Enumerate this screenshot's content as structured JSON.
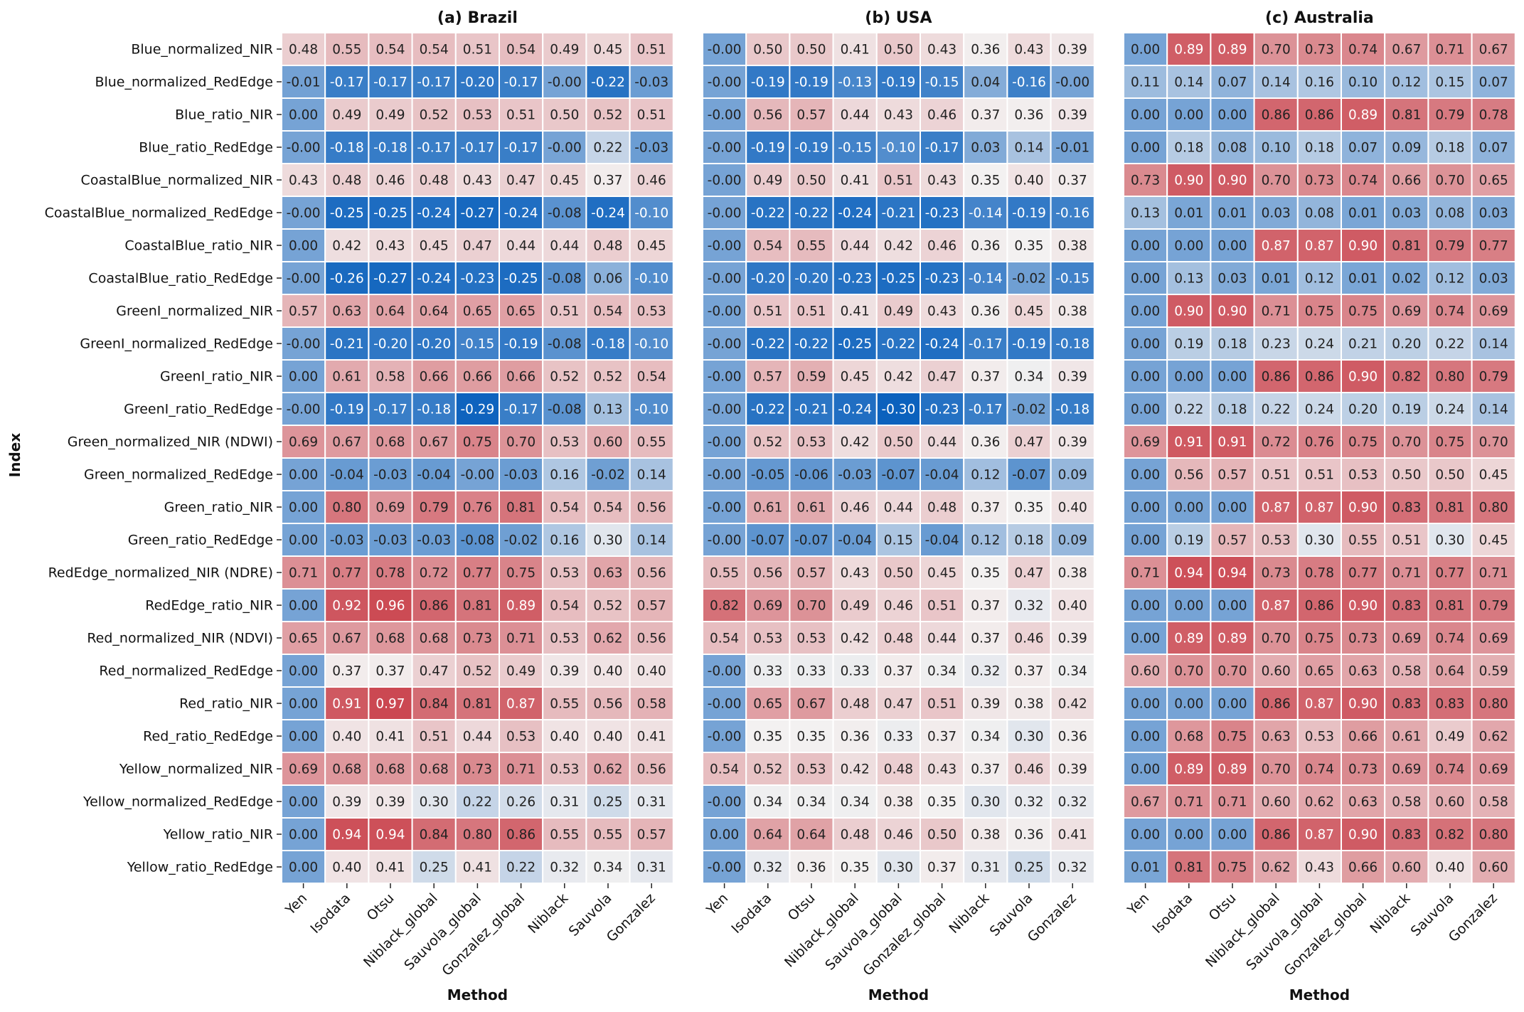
{
  "chart_data": {
    "type": "heatmap",
    "ylabel": "Index",
    "xlabel": "Method",
    "value_range": [
      -0.3,
      1.0
    ],
    "colormap": "coolwarm-like (blue = low, white = mid, red = high)",
    "colors": {
      "low": "#0b61bd",
      "mid": "#f3f1f1",
      "high": "#c9404a",
      "grid": "#ffffff",
      "text_dark": "#222222",
      "text_light": "#ffffff"
    },
    "rows": [
      "Blue_normalized_NIR",
      "Blue_normalized_RedEdge",
      "Blue_ratio_NIR",
      "Blue_ratio_RedEdge",
      "CoastalBlue_normalized_NIR",
      "CoastalBlue_normalized_RedEdge",
      "CoastalBlue_ratio_NIR",
      "CoastalBlue_ratio_RedEdge",
      "GreenI_normalized_NIR",
      "GreenI_normalized_RedEdge",
      "GreenI_ratio_NIR",
      "GreenI_ratio_RedEdge",
      "Green_normalized_NIR (NDWI)",
      "Green_normalized_RedEdge",
      "Green_ratio_NIR",
      "Green_ratio_RedEdge",
      "RedEdge_normalized_NIR (NDRE)",
      "RedEdge_ratio_NIR",
      "Red_normalized_NIR (NDVI)",
      "Red_normalized_RedEdge",
      "Red_ratio_NIR",
      "Red_ratio_RedEdge",
      "Yellow_normalized_NIR",
      "Yellow_normalized_RedEdge",
      "Yellow_ratio_NIR",
      "Yellow_ratio_RedEdge"
    ],
    "columns": [
      "Yen",
      "Isodata",
      "Otsu",
      "Niblack_global",
      "Sauvola_global",
      "Gonzalez_global",
      "Niblack",
      "Sauvola",
      "Gonzalez"
    ],
    "panels": [
      {
        "title": "(a) Brazil",
        "values": [
          [
            "0.48",
            "0.55",
            "0.54",
            "0.54",
            "0.51",
            "0.54",
            "0.49",
            "0.45",
            "0.51"
          ],
          [
            "-0.01",
            "-0.17",
            "-0.17",
            "-0.17",
            "-0.20",
            "-0.17",
            "-0.00",
            "-0.22",
            "-0.03"
          ],
          [
            "0.00",
            "0.49",
            "0.49",
            "0.52",
            "0.53",
            "0.51",
            "0.50",
            "0.52",
            "0.51"
          ],
          [
            "-0.00",
            "-0.18",
            "-0.18",
            "-0.17",
            "-0.17",
            "-0.17",
            "-0.00",
            "0.22",
            "-0.03"
          ],
          [
            "0.43",
            "0.48",
            "0.46",
            "0.48",
            "0.43",
            "0.47",
            "0.45",
            "0.37",
            "0.46"
          ],
          [
            "-0.00",
            "-0.25",
            "-0.25",
            "-0.24",
            "-0.27",
            "-0.24",
            "-0.08",
            "-0.24",
            "-0.10"
          ],
          [
            "0.00",
            "0.42",
            "0.43",
            "0.45",
            "0.47",
            "0.44",
            "0.44",
            "0.48",
            "0.45"
          ],
          [
            "-0.00",
            "-0.26",
            "-0.27",
            "-0.24",
            "-0.23",
            "-0.25",
            "-0.08",
            "0.06",
            "-0.10"
          ],
          [
            "0.57",
            "0.63",
            "0.64",
            "0.64",
            "0.65",
            "0.65",
            "0.51",
            "0.54",
            "0.53"
          ],
          [
            "-0.00",
            "-0.21",
            "-0.20",
            "-0.20",
            "-0.15",
            "-0.19",
            "-0.08",
            "-0.18",
            "-0.10"
          ],
          [
            "0.00",
            "0.61",
            "0.58",
            "0.66",
            "0.66",
            "0.66",
            "0.52",
            "0.52",
            "0.54"
          ],
          [
            "-0.00",
            "-0.19",
            "-0.17",
            "-0.18",
            "-0.29",
            "-0.17",
            "-0.08",
            "0.13",
            "-0.10"
          ],
          [
            "0.69",
            "0.67",
            "0.68",
            "0.67",
            "0.75",
            "0.70",
            "0.53",
            "0.60",
            "0.55"
          ],
          [
            "0.00",
            "-0.04",
            "-0.03",
            "-0.04",
            "-0.00",
            "-0.03",
            "0.16",
            "-0.02",
            "0.14"
          ],
          [
            "0.00",
            "0.80",
            "0.69",
            "0.79",
            "0.76",
            "0.81",
            "0.54",
            "0.54",
            "0.56"
          ],
          [
            "0.00",
            "-0.03",
            "-0.03",
            "-0.03",
            "-0.08",
            "-0.02",
            "0.16",
            "0.30",
            "0.14"
          ],
          [
            "0.71",
            "0.77",
            "0.78",
            "0.72",
            "0.77",
            "0.75",
            "0.53",
            "0.63",
            "0.56"
          ],
          [
            "0.00",
            "0.92",
            "0.96",
            "0.86",
            "0.81",
            "0.89",
            "0.54",
            "0.52",
            "0.57"
          ],
          [
            "0.65",
            "0.67",
            "0.68",
            "0.68",
            "0.73",
            "0.71",
            "0.53",
            "0.62",
            "0.56"
          ],
          [
            "0.00",
            "0.37",
            "0.37",
            "0.47",
            "0.52",
            "0.49",
            "0.39",
            "0.40",
            "0.40"
          ],
          [
            "0.00",
            "0.91",
            "0.97",
            "0.84",
            "0.81",
            "0.87",
            "0.55",
            "0.56",
            "0.58"
          ],
          [
            "0.00",
            "0.40",
            "0.41",
            "0.51",
            "0.44",
            "0.53",
            "0.40",
            "0.40",
            "0.41"
          ],
          [
            "0.69",
            "0.68",
            "0.68",
            "0.68",
            "0.73",
            "0.71",
            "0.53",
            "0.62",
            "0.56"
          ],
          [
            "0.00",
            "0.39",
            "0.39",
            "0.30",
            "0.22",
            "0.26",
            "0.31",
            "0.25",
            "0.31"
          ],
          [
            "0.00",
            "0.94",
            "0.94",
            "0.84",
            "0.80",
            "0.86",
            "0.55",
            "0.55",
            "0.57"
          ],
          [
            "0.00",
            "0.40",
            "0.41",
            "0.25",
            "0.41",
            "0.22",
            "0.32",
            "0.34",
            "0.31"
          ]
        ]
      },
      {
        "title": "(b) USA",
        "values": [
          [
            "-0.00",
            "0.50",
            "0.50",
            "0.41",
            "0.50",
            "0.43",
            "0.36",
            "0.43",
            "0.39"
          ],
          [
            "-0.00",
            "-0.19",
            "-0.19",
            "-0.13",
            "-0.19",
            "-0.15",
            "0.04",
            "-0.16",
            "-0.00"
          ],
          [
            "-0.00",
            "0.56",
            "0.57",
            "0.44",
            "0.43",
            "0.46",
            "0.37",
            "0.36",
            "0.39"
          ],
          [
            "-0.00",
            "-0.19",
            "-0.19",
            "-0.15",
            "-0.10",
            "-0.17",
            "0.03",
            "0.14",
            "-0.01"
          ],
          [
            "-0.00",
            "0.49",
            "0.50",
            "0.41",
            "0.51",
            "0.43",
            "0.35",
            "0.40",
            "0.37"
          ],
          [
            "-0.00",
            "-0.22",
            "-0.22",
            "-0.24",
            "-0.21",
            "-0.23",
            "-0.14",
            "-0.19",
            "-0.16"
          ],
          [
            "-0.00",
            "0.54",
            "0.55",
            "0.44",
            "0.42",
            "0.46",
            "0.36",
            "0.35",
            "0.38"
          ],
          [
            "-0.00",
            "-0.20",
            "-0.20",
            "-0.23",
            "-0.25",
            "-0.23",
            "-0.14",
            "-0.02",
            "-0.15"
          ],
          [
            "-0.00",
            "0.51",
            "0.51",
            "0.41",
            "0.49",
            "0.43",
            "0.36",
            "0.45",
            "0.38"
          ],
          [
            "-0.00",
            "-0.22",
            "-0.22",
            "-0.25",
            "-0.22",
            "-0.24",
            "-0.17",
            "-0.19",
            "-0.18"
          ],
          [
            "-0.00",
            "0.57",
            "0.59",
            "0.45",
            "0.42",
            "0.47",
            "0.37",
            "0.34",
            "0.39"
          ],
          [
            "-0.00",
            "-0.22",
            "-0.21",
            "-0.24",
            "-0.30",
            "-0.23",
            "-0.17",
            "-0.02",
            "-0.18"
          ],
          [
            "-0.00",
            "0.52",
            "0.53",
            "0.42",
            "0.50",
            "0.44",
            "0.36",
            "0.47",
            "0.39"
          ],
          [
            "-0.00",
            "-0.05",
            "-0.06",
            "-0.03",
            "-0.07",
            "-0.04",
            "0.12",
            "-0.07",
            "0.09"
          ],
          [
            "-0.00",
            "0.61",
            "0.61",
            "0.46",
            "0.44",
            "0.48",
            "0.37",
            "0.35",
            "0.40"
          ],
          [
            "-0.00",
            "-0.07",
            "-0.07",
            "-0.04",
            "0.15",
            "-0.04",
            "0.12",
            "0.18",
            "0.09"
          ],
          [
            "0.55",
            "0.56",
            "0.57",
            "0.43",
            "0.50",
            "0.45",
            "0.35",
            "0.47",
            "0.38"
          ],
          [
            "0.82",
            "0.69",
            "0.70",
            "0.49",
            "0.46",
            "0.51",
            "0.37",
            "0.32",
            "0.40"
          ],
          [
            "0.54",
            "0.53",
            "0.53",
            "0.42",
            "0.48",
            "0.44",
            "0.37",
            "0.46",
            "0.39"
          ],
          [
            "-0.00",
            "0.33",
            "0.33",
            "0.33",
            "0.37",
            "0.34",
            "0.32",
            "0.37",
            "0.34"
          ],
          [
            "-0.00",
            "0.65",
            "0.67",
            "0.48",
            "0.47",
            "0.51",
            "0.39",
            "0.38",
            "0.42"
          ],
          [
            "-0.00",
            "0.35",
            "0.35",
            "0.36",
            "0.33",
            "0.37",
            "0.34",
            "0.30",
            "0.36"
          ],
          [
            "0.54",
            "0.52",
            "0.53",
            "0.42",
            "0.48",
            "0.43",
            "0.37",
            "0.46",
            "0.39"
          ],
          [
            "-0.00",
            "0.34",
            "0.34",
            "0.34",
            "0.38",
            "0.35",
            "0.30",
            "0.32",
            "0.32"
          ],
          [
            "0.00",
            "0.64",
            "0.64",
            "0.48",
            "0.46",
            "0.50",
            "0.38",
            "0.36",
            "0.41"
          ],
          [
            "-0.00",
            "0.32",
            "0.36",
            "0.35",
            "0.30",
            "0.37",
            "0.31",
            "0.25",
            "0.32"
          ]
        ]
      },
      {
        "title": "(c) Australia",
        "values": [
          [
            "0.00",
            "0.89",
            "0.89",
            "0.70",
            "0.73",
            "0.74",
            "0.67",
            "0.71",
            "0.67"
          ],
          [
            "0.11",
            "0.14",
            "0.07",
            "0.14",
            "0.16",
            "0.10",
            "0.12",
            "0.15",
            "0.07"
          ],
          [
            "0.00",
            "0.00",
            "0.00",
            "0.86",
            "0.86",
            "0.89",
            "0.81",
            "0.79",
            "0.78"
          ],
          [
            "0.00",
            "0.18",
            "0.08",
            "0.10",
            "0.18",
            "0.07",
            "0.09",
            "0.18",
            "0.07"
          ],
          [
            "0.73",
            "0.90",
            "0.90",
            "0.70",
            "0.73",
            "0.74",
            "0.66",
            "0.70",
            "0.65"
          ],
          [
            "0.13",
            "0.01",
            "0.01",
            "0.03",
            "0.08",
            "0.01",
            "0.03",
            "0.08",
            "0.03"
          ],
          [
            "0.00",
            "0.00",
            "0.00",
            "0.87",
            "0.87",
            "0.90",
            "0.81",
            "0.79",
            "0.77"
          ],
          [
            "0.00",
            "0.13",
            "0.03",
            "0.01",
            "0.12",
            "0.01",
            "0.02",
            "0.12",
            "0.03"
          ],
          [
            "0.00",
            "0.90",
            "0.90",
            "0.71",
            "0.75",
            "0.75",
            "0.69",
            "0.74",
            "0.69"
          ],
          [
            "0.00",
            "0.19",
            "0.18",
            "0.23",
            "0.24",
            "0.21",
            "0.20",
            "0.22",
            "0.14"
          ],
          [
            "0.00",
            "0.00",
            "0.00",
            "0.86",
            "0.86",
            "0.90",
            "0.82",
            "0.80",
            "0.79"
          ],
          [
            "0.00",
            "0.22",
            "0.18",
            "0.22",
            "0.24",
            "0.20",
            "0.19",
            "0.24",
            "0.14"
          ],
          [
            "0.69",
            "0.91",
            "0.91",
            "0.72",
            "0.76",
            "0.75",
            "0.70",
            "0.75",
            "0.70"
          ],
          [
            "0.00",
            "0.56",
            "0.57",
            "0.51",
            "0.51",
            "0.53",
            "0.50",
            "0.50",
            "0.45"
          ],
          [
            "0.00",
            "0.00",
            "0.00",
            "0.87",
            "0.87",
            "0.90",
            "0.83",
            "0.81",
            "0.80"
          ],
          [
            "0.00",
            "0.19",
            "0.57",
            "0.53",
            "0.30",
            "0.55",
            "0.51",
            "0.30",
            "0.45"
          ],
          [
            "0.71",
            "0.94",
            "0.94",
            "0.73",
            "0.78",
            "0.77",
            "0.71",
            "0.77",
            "0.71"
          ],
          [
            "0.00",
            "0.00",
            "0.00",
            "0.87",
            "0.86",
            "0.90",
            "0.83",
            "0.81",
            "0.79"
          ],
          [
            "0.00",
            "0.89",
            "0.89",
            "0.70",
            "0.75",
            "0.73",
            "0.69",
            "0.74",
            "0.69"
          ],
          [
            "0.60",
            "0.70",
            "0.70",
            "0.60",
            "0.65",
            "0.63",
            "0.58",
            "0.64",
            "0.59"
          ],
          [
            "0.00",
            "0.00",
            "0.00",
            "0.86",
            "0.87",
            "0.90",
            "0.83",
            "0.83",
            "0.80"
          ],
          [
            "0.00",
            "0.68",
            "0.75",
            "0.63",
            "0.53",
            "0.66",
            "0.61",
            "0.49",
            "0.62"
          ],
          [
            "0.00",
            "0.89",
            "0.89",
            "0.70",
            "0.74",
            "0.73",
            "0.69",
            "0.74",
            "0.69"
          ],
          [
            "0.67",
            "0.71",
            "0.71",
            "0.60",
            "0.62",
            "0.63",
            "0.58",
            "0.60",
            "0.58"
          ],
          [
            "0.00",
            "0.00",
            "0.00",
            "0.86",
            "0.87",
            "0.90",
            "0.83",
            "0.82",
            "0.80"
          ],
          [
            "0.01",
            "0.81",
            "0.75",
            "0.62",
            "0.43",
            "0.66",
            "0.60",
            "0.40",
            "0.60"
          ]
        ]
      }
    ]
  }
}
